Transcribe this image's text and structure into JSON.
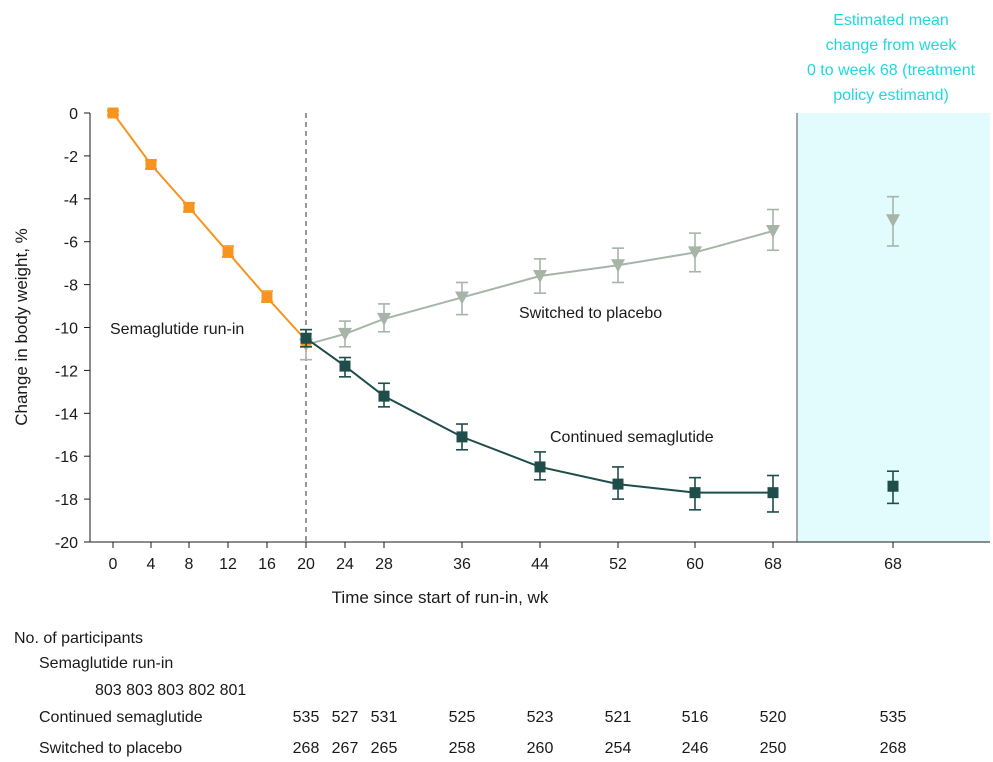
{
  "chart_data": {
    "type": "line",
    "ylabel": "Change in body weight, %",
    "xlabel": "Time since start of run-in, wk",
    "ylim": [
      -20,
      0
    ],
    "yticks": [
      0,
      -2,
      -4,
      -6,
      -8,
      -10,
      -12,
      -14,
      -16,
      -18,
      -20
    ],
    "xticks": [
      0,
      4,
      8,
      12,
      16,
      20,
      24,
      28,
      36,
      44,
      52,
      60,
      68
    ],
    "series": [
      {
        "name": "Semaglutide run-in",
        "color": "#f7941d",
        "marker": "square",
        "points": [
          {
            "x": 0,
            "y": 0.0,
            "lo": -0.1,
            "hi": 0.1
          },
          {
            "x": 4,
            "y": -2.4,
            "lo": -2.6,
            "hi": -2.2
          },
          {
            "x": 8,
            "y": -4.4,
            "lo": -4.6,
            "hi": -4.2
          },
          {
            "x": 12,
            "y": -6.5,
            "lo": -6.7,
            "hi": -6.2
          },
          {
            "x": 16,
            "y": -8.6,
            "lo": -8.8,
            "hi": -8.3
          },
          {
            "x": 20,
            "y": -10.6,
            "lo": -10.9,
            "hi": -10.3
          }
        ]
      },
      {
        "name": "Switched to placebo",
        "color": "#a6b5a8",
        "marker": "triangle-down",
        "points": [
          {
            "x": 20,
            "y": -10.8,
            "lo": -11.5,
            "hi": -10.1
          },
          {
            "x": 24,
            "y": -10.3,
            "lo": -10.9,
            "hi": -9.7
          },
          {
            "x": 28,
            "y": -9.6,
            "lo": -10.2,
            "hi": -8.9
          },
          {
            "x": 36,
            "y": -8.6,
            "lo": -9.4,
            "hi": -7.9
          },
          {
            "x": 44,
            "y": -7.6,
            "lo": -8.4,
            "hi": -6.8
          },
          {
            "x": 52,
            "y": -7.1,
            "lo": -7.9,
            "hi": -6.3
          },
          {
            "x": 60,
            "y": -6.5,
            "lo": -7.4,
            "hi": -5.6
          },
          {
            "x": 68,
            "y": -5.5,
            "lo": -6.4,
            "hi": -4.5
          }
        ]
      },
      {
        "name": "Continued semaglutide",
        "color": "#1e4d4a",
        "marker": "square",
        "points": [
          {
            "x": 20,
            "y": -10.5,
            "lo": -10.9,
            "hi": -10.1
          },
          {
            "x": 24,
            "y": -11.8,
            "lo": -12.3,
            "hi": -11.4
          },
          {
            "x": 28,
            "y": -13.2,
            "lo": -13.7,
            "hi": -12.6
          },
          {
            "x": 36,
            "y": -15.1,
            "lo": -15.7,
            "hi": -14.5
          },
          {
            "x": 44,
            "y": -16.5,
            "lo": -17.1,
            "hi": -15.8
          },
          {
            "x": 52,
            "y": -17.3,
            "lo": -18.0,
            "hi": -16.5
          },
          {
            "x": 60,
            "y": -17.7,
            "lo": -18.5,
            "hi": -17.0
          },
          {
            "x": 68,
            "y": -17.7,
            "lo": -18.6,
            "hi": -16.9
          }
        ]
      }
    ],
    "estimand_panel": {
      "title": [
        "Estimated mean",
        "change from week",
        "0 to week 68 (treatment",
        "policy estimand)"
      ],
      "x_label": "68",
      "background": "#e2fbfd",
      "title_color": "#20d8e0",
      "points": [
        {
          "series": "Switched to placebo",
          "y": -5.0,
          "lo": -6.2,
          "hi": -3.9
        },
        {
          "series": "Continued semaglutide",
          "y": -17.4,
          "lo": -18.2,
          "hi": -16.7
        }
      ]
    },
    "annotations": [
      {
        "text": "Semaglutide run-in",
        "x": 0,
        "y": -10.2
      },
      {
        "text": "Switched to placebo",
        "x": 40,
        "y": -9.3
      },
      {
        "text": "Continued semaglutide",
        "x": 44,
        "y": -15.2
      }
    ]
  },
  "participants": {
    "header": "No. of participants",
    "runin_label": "Semaglutide run-in",
    "runin_counts": "803 803 803 802 801",
    "continued_label": "Continued semaglutide",
    "continued_counts": [
      "535",
      "527",
      "531",
      "525",
      "523",
      "521",
      "516",
      "520"
    ],
    "continued_estimand": "535",
    "placebo_label": "Switched to placebo",
    "placebo_counts": [
      "268",
      "267",
      "265",
      "258",
      "260",
      "254",
      "246",
      "250"
    ],
    "placebo_estimand": "268"
  }
}
